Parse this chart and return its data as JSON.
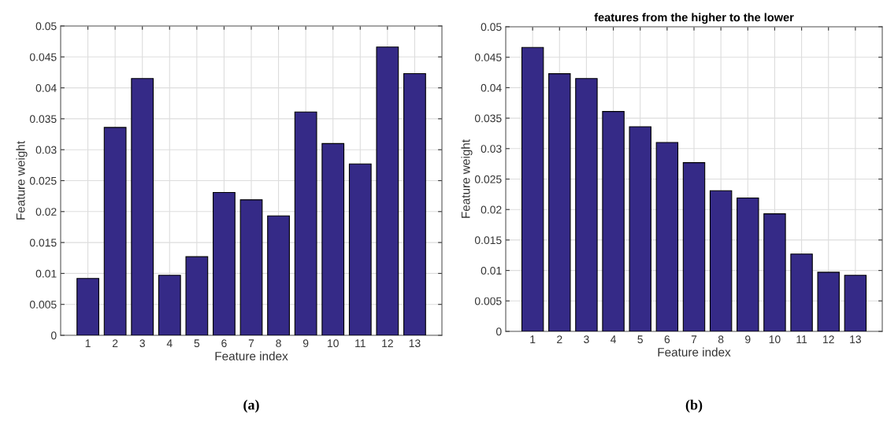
{
  "chart_data": [
    {
      "type": "bar",
      "xlabel": "Feature index",
      "ylabel": "Feature weight",
      "categories": [
        "1",
        "2",
        "3",
        "4",
        "5",
        "6",
        "7",
        "8",
        "9",
        "10",
        "11",
        "12",
        "13"
      ],
      "values": [
        0.0092,
        0.0336,
        0.0415,
        0.0097,
        0.0127,
        0.0231,
        0.0219,
        0.0193,
        0.0361,
        0.031,
        0.0277,
        0.0466,
        0.0423
      ],
      "color": "#352a87",
      "ylim": [
        0,
        0.05
      ],
      "yticks": [
        0,
        0.005,
        0.01,
        0.015,
        0.02,
        0.025,
        0.03,
        0.035,
        0.04,
        0.045,
        0.05
      ],
      "grid": true,
      "annotations": [
        "(a)"
      ]
    },
    {
      "type": "bar",
      "title": "features from the higher to the lower",
      "xlabel": "Feature index",
      "ylabel": "Feature weight",
      "categories": [
        "1",
        "2",
        "3",
        "4",
        "5",
        "6",
        "7",
        "8",
        "9",
        "10",
        "11",
        "12",
        "13"
      ],
      "values": [
        0.0466,
        0.0423,
        0.0415,
        0.0361,
        0.0336,
        0.031,
        0.0277,
        0.0231,
        0.0219,
        0.0193,
        0.0127,
        0.0097,
        0.0092
      ],
      "color": "#352a87",
      "ylim": [
        0,
        0.05
      ],
      "yticks": [
        0,
        0.005,
        0.01,
        0.015,
        0.02,
        0.025,
        0.03,
        0.035,
        0.04,
        0.045,
        0.05
      ],
      "grid": true,
      "annotations": [
        "(b)"
      ]
    }
  ]
}
